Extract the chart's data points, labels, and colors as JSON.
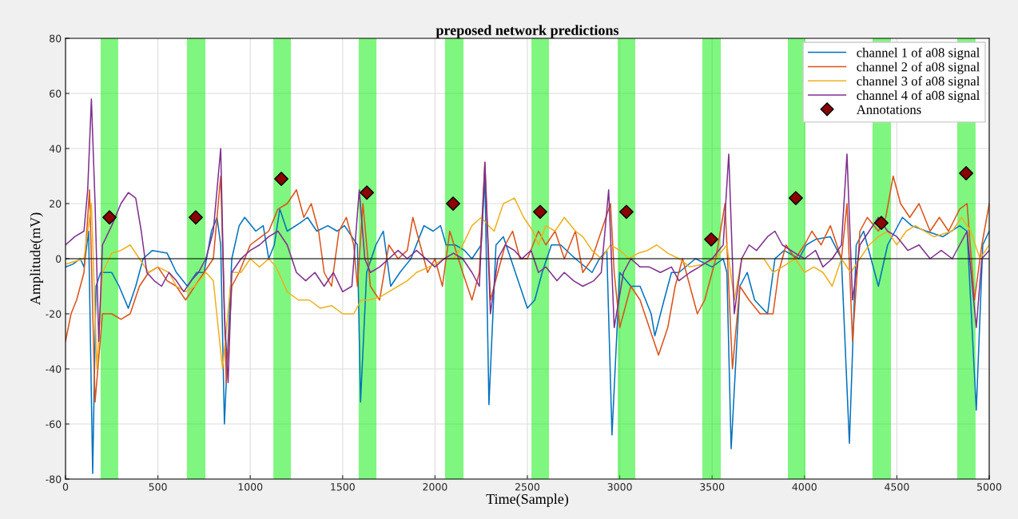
{
  "chart_data": {
    "type": "line",
    "title": "preposed network predictions",
    "xlabel": "Time(Sample)",
    "ylabel": "Amplitude(mV)",
    "xlim": [
      0,
      5000
    ],
    "xticks": [
      0,
      500,
      1000,
      1500,
      2000,
      2500,
      3000,
      3500,
      4000,
      4500,
      5000
    ],
    "ylim": [
      -80,
      80
    ],
    "yticks": [
      -80,
      -60,
      -40,
      -20,
      0,
      20,
      40,
      60,
      80
    ],
    "grid": true,
    "legend": "top right",
    "series": [
      {
        "name": "channel 1 of a08 signal",
        "color": "#0072bd",
        "x": [
          0,
          40,
          80,
          100,
          125,
          147,
          165,
          190,
          250,
          290,
          340,
          380,
          420,
          470,
          550,
          600,
          660,
          710,
          750,
          790,
          820,
          840,
          860,
          900,
          940,
          970,
          1030,
          1070,
          1100,
          1130,
          1160,
          1200,
          1270,
          1310,
          1360,
          1420,
          1470,
          1510,
          1550,
          1580,
          1597,
          1630,
          1680,
          1720,
          1760,
          1810,
          1870,
          1940,
          1990,
          2030,
          2060,
          2110,
          2160,
          2200,
          2250,
          2270,
          2292,
          2330,
          2370,
          2410,
          2460,
          2500,
          2540,
          2580,
          2630,
          2680,
          2760,
          2850,
          2890,
          2930,
          2958,
          3000,
          3060,
          3110,
          3170,
          3190,
          3240,
          3280,
          3320,
          3410,
          3500,
          3560,
          3580,
          3603,
          3650,
          3690,
          3730,
          3800,
          3840,
          3890,
          3970,
          4010,
          4060,
          4140,
          4200,
          4243,
          4280,
          4320,
          4400,
          4450,
          4490,
          4530,
          4580,
          4660,
          4750,
          4840,
          4880,
          4930,
          4965,
          5000
        ],
        "values": [
          -3,
          -2,
          0,
          -3,
          10,
          -78,
          -10,
          -5,
          -5,
          -10,
          -18,
          -10,
          0,
          3,
          2,
          -5,
          -10,
          -5,
          -5,
          10,
          15,
          5,
          -60,
          0,
          12,
          15,
          10,
          12,
          0,
          5,
          18,
          10,
          13,
          15,
          10,
          12,
          10,
          12,
          8,
          5,
          -52,
          -5,
          5,
          10,
          -10,
          -5,
          0,
          12,
          10,
          12,
          5,
          5,
          3,
          0,
          5,
          30,
          -53,
          5,
          8,
          0,
          -10,
          -18,
          -15,
          -5,
          5,
          5,
          0,
          -5,
          0,
          3,
          -64,
          -5,
          -10,
          -10,
          -20,
          -28,
          -15,
          -5,
          -5,
          0,
          -3,
          0,
          -5,
          -69,
          -10,
          -5,
          -15,
          -20,
          0,
          3,
          0,
          5,
          7,
          8,
          0,
          -67,
          5,
          10,
          -10,
          5,
          10,
          15,
          12,
          10,
          8,
          12,
          10,
          -55,
          5,
          10
        ]
      },
      {
        "name": "channel 2 of a08 signal",
        "color": "#d95319",
        "x": [
          0,
          30,
          60,
          100,
          130,
          160,
          200,
          250,
          300,
          350,
          400,
          450,
          500,
          550,
          600,
          650,
          700,
          750,
          800,
          840,
          870,
          900,
          940,
          1000,
          1060,
          1100,
          1150,
          1200,
          1250,
          1290,
          1330,
          1370,
          1400,
          1440,
          1480,
          1520,
          1560,
          1580,
          1610,
          1650,
          1700,
          1750,
          1800,
          1850,
          1880,
          1920,
          1960,
          2000,
          2040,
          2080,
          2150,
          2200,
          2240,
          2270,
          2300,
          2340,
          2380,
          2420,
          2460,
          2500,
          2560,
          2600,
          2650,
          2700,
          2760,
          2800,
          2850,
          2900,
          2950,
          2970,
          3000,
          3060,
          3110,
          3160,
          3210,
          3260,
          3300,
          3340,
          3380,
          3420,
          3460,
          3520,
          3570,
          3610,
          3650,
          3700,
          3760,
          3830,
          3860,
          3900,
          3950,
          4000,
          4040,
          4090,
          4140,
          4200,
          4230,
          4260,
          4300,
          4340,
          4400,
          4440,
          4480,
          4520,
          4570,
          4620,
          4680,
          4730,
          4780,
          4840,
          4880,
          4920,
          4960,
          5000
        ],
        "values": [
          -30,
          -20,
          -15,
          -5,
          25,
          -52,
          -20,
          -20,
          -22,
          -20,
          -10,
          -5,
          -3,
          -8,
          -10,
          -15,
          -10,
          -5,
          0,
          30,
          -45,
          -10,
          -5,
          5,
          8,
          10,
          18,
          20,
          25,
          15,
          20,
          10,
          -5,
          -10,
          10,
          15,
          5,
          -10,
          20,
          -10,
          -15,
          5,
          0,
          3,
          15,
          5,
          -5,
          0,
          -10,
          10,
          -5,
          -15,
          -5,
          35,
          -15,
          -5,
          5,
          10,
          0,
          0,
          10,
          5,
          10,
          0,
          10,
          -5,
          0,
          10,
          20,
          -5,
          -25,
          -10,
          -15,
          -25,
          -35,
          -25,
          -10,
          0,
          -10,
          -20,
          -15,
          0,
          20,
          -40,
          -10,
          -15,
          -20,
          -20,
          -5,
          5,
          0,
          5,
          10,
          5,
          12,
          0,
          20,
          -30,
          10,
          15,
          10,
          15,
          30,
          20,
          15,
          20,
          10,
          15,
          10,
          18,
          20,
          -15,
          5,
          20
        ]
      },
      {
        "name": "channel 3 of a08 signal",
        "color": "#edb120",
        "x": [
          0,
          100,
          140,
          170,
          200,
          250,
          300,
          350,
          400,
          450,
          500,
          560,
          600,
          650,
          700,
          760,
          800,
          850,
          900,
          950,
          1000,
          1050,
          1100,
          1140,
          1200,
          1260,
          1320,
          1380,
          1440,
          1500,
          1560,
          1600,
          1640,
          1700,
          1750,
          1800,
          1850,
          1900,
          2000,
          2050,
          2100,
          2150,
          2200,
          2250,
          2290,
          2320,
          2370,
          2430,
          2480,
          2530,
          2560,
          2600,
          2650,
          2700,
          2760,
          2800,
          2850,
          2900,
          2950,
          3000,
          3050,
          3100,
          3150,
          3200,
          3260,
          3320,
          3380,
          3450,
          3520,
          3580,
          3620,
          3660,
          3720,
          3780,
          3830,
          3880,
          3950,
          4000,
          4050,
          4100,
          4150,
          4200,
          4250,
          4300,
          4350,
          4400,
          4450,
          4500,
          4550,
          4600,
          4700,
          4800,
          4850,
          4900,
          4950,
          5000
        ],
        "values": [
          -2,
          0,
          20,
          -40,
          -5,
          2,
          3,
          5,
          0,
          -5,
          -3,
          -5,
          -10,
          -12,
          -10,
          -5,
          -8,
          -40,
          -5,
          -5,
          0,
          -3,
          0,
          -3,
          -12,
          -15,
          -15,
          -18,
          -17,
          -20,
          -20,
          -15,
          -15,
          -14,
          -12,
          -10,
          -8,
          -5,
          -2,
          0,
          0,
          5,
          12,
          15,
          12,
          10,
          20,
          22,
          15,
          10,
          5,
          12,
          10,
          15,
          10,
          8,
          3,
          0,
          5,
          3,
          0,
          2,
          3,
          5,
          2,
          0,
          -3,
          -2,
          0,
          5,
          -15,
          0,
          0,
          0,
          -5,
          -3,
          0,
          -5,
          -3,
          -5,
          -10,
          0,
          -5,
          0,
          5,
          8,
          10,
          5,
          10,
          12,
          8,
          10,
          15,
          10,
          0,
          5
        ]
      },
      {
        "name": "channel 4 of a08 signal",
        "color": "#7e2f8e",
        "x": [
          0,
          50,
          100,
          120,
          140,
          160,
          180,
          200,
          250,
          300,
          340,
          380,
          410,
          440,
          480,
          520,
          560,
          600,
          640,
          680,
          720,
          760,
          800,
          840,
          860,
          880,
          900,
          950,
          1000,
          1050,
          1100,
          1150,
          1200,
          1250,
          1300,
          1350,
          1400,
          1450,
          1500,
          1550,
          1590,
          1620,
          1650,
          1700,
          1750,
          1800,
          1850,
          1900,
          1950,
          2000,
          2050,
          2100,
          2150,
          2200,
          2240,
          2270,
          2300,
          2340,
          2380,
          2430,
          2470,
          2520,
          2560,
          2600,
          2660,
          2700,
          2750,
          2800,
          2860,
          2900,
          2940,
          2970,
          3020,
          3060,
          3110,
          3160,
          3220,
          3280,
          3320,
          3380,
          3430,
          3500,
          3560,
          3590,
          3620,
          3660,
          3700,
          3740,
          3800,
          3840,
          3880,
          3950,
          4000,
          4060,
          4100,
          4150,
          4200,
          4230,
          4260,
          4300,
          4350,
          4400,
          4450,
          4500,
          4560,
          4620,
          4680,
          4740,
          4800,
          4880,
          4930,
          4960,
          5000
        ],
        "values": [
          5,
          8,
          10,
          25,
          58,
          20,
          -30,
          5,
          12,
          20,
          24,
          22,
          10,
          -5,
          -8,
          -10,
          -5,
          -8,
          -12,
          -8,
          -5,
          0,
          10,
          40,
          -20,
          -45,
          -5,
          0,
          3,
          5,
          8,
          10,
          5,
          -5,
          -8,
          -5,
          -10,
          -5,
          -12,
          -10,
          25,
          0,
          -5,
          -3,
          0,
          3,
          0,
          3,
          0,
          -3,
          0,
          2,
          0,
          -5,
          -10,
          35,
          -20,
          0,
          5,
          3,
          0,
          3,
          -5,
          -3,
          -8,
          -5,
          -8,
          -10,
          -8,
          -5,
          25,
          -25,
          -5,
          0,
          -3,
          -3,
          -5,
          -3,
          -8,
          -5,
          -3,
          0,
          5,
          38,
          -20,
          0,
          5,
          3,
          8,
          10,
          5,
          2,
          0,
          3,
          -3,
          0,
          5,
          38,
          -15,
          5,
          10,
          15,
          10,
          8,
          3,
          5,
          0,
          3,
          0,
          10,
          -25,
          0,
          3
        ]
      },
      {
        "name": "Annotations",
        "type": "scatter",
        "marker": "diamond",
        "color": "#8b0000",
        "x": [
          238,
          705,
          1168,
          1631,
          2098,
          2569,
          3036,
          3495,
          3953,
          4416,
          4875
        ],
        "values": [
          15,
          15,
          29,
          24,
          20,
          17,
          17,
          7,
          22,
          13,
          31
        ]
      }
    ],
    "ref_lines": [
      {
        "axis": "y",
        "value": 0,
        "color": "#000000"
      }
    ],
    "bands": [
      {
        "axis": "x",
        "from": 190,
        "to": 285,
        "color": "#00ee00"
      },
      {
        "axis": "x",
        "from": 657,
        "to": 757,
        "color": "#00ee00"
      },
      {
        "axis": "x",
        "from": 1125,
        "to": 1220,
        "color": "#00ee00"
      },
      {
        "axis": "x",
        "from": 1587,
        "to": 1683,
        "color": "#00ee00"
      },
      {
        "axis": "x",
        "from": 2054,
        "to": 2154,
        "color": "#00ee00"
      },
      {
        "axis": "x",
        "from": 2522,
        "to": 2617,
        "color": "#00ee00"
      },
      {
        "axis": "x",
        "from": 2989,
        "to": 3084,
        "color": "#00ee00"
      },
      {
        "axis": "x",
        "from": 3447,
        "to": 3547,
        "color": "#00ee00"
      },
      {
        "axis": "x",
        "from": 3910,
        "to": 4005,
        "color": "#00ee00"
      },
      {
        "axis": "x",
        "from": 4368,
        "to": 4468,
        "color": "#00ee00"
      },
      {
        "axis": "x",
        "from": 4827,
        "to": 4926,
        "color": "#00ee00"
      }
    ]
  }
}
